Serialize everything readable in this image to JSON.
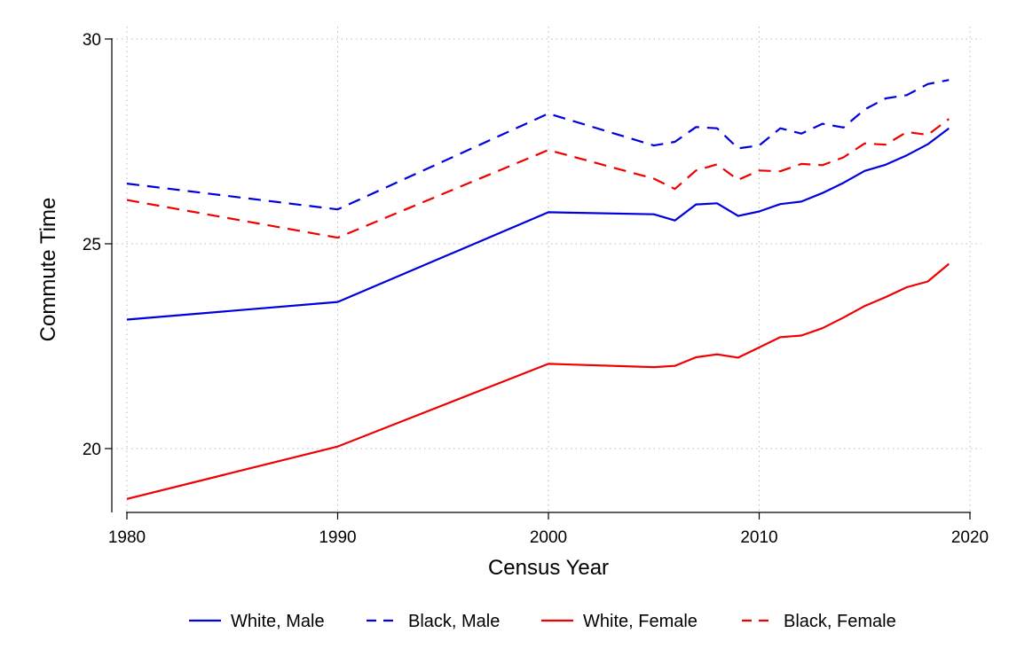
{
  "chart_data": {
    "type": "line",
    "title": "",
    "xlabel": "Census Year",
    "ylabel": "Commute Time",
    "xlim": [
      1980,
      2020
    ],
    "ylim": [
      18.75,
      30.05
    ],
    "x_ticks": [
      1980,
      1990,
      2000,
      2010,
      2020
    ],
    "y_ticks": [
      20,
      25,
      30
    ],
    "grid": "dotted",
    "legend_position": "bottom",
    "series": [
      {
        "name": "White, Male",
        "color": "#0000dd",
        "dash": "solid",
        "x": [
          1980,
          1990,
          2000,
          2005,
          2006,
          2007,
          2008,
          2009,
          2010,
          2011,
          2012,
          2013,
          2014,
          2015,
          2016,
          2017,
          2018,
          2019
        ],
        "y": [
          23.15,
          23.58,
          25.77,
          25.72,
          25.57,
          25.96,
          25.99,
          25.68,
          25.79,
          25.97,
          26.03,
          26.24,
          26.49,
          26.78,
          26.93,
          27.16,
          27.43,
          27.82
        ]
      },
      {
        "name": "Black, Male",
        "color": "#0000dd",
        "dash": "dashed",
        "x": [
          1980,
          1990,
          2000,
          2005,
          2006,
          2007,
          2008,
          2009,
          2010,
          2011,
          2012,
          2013,
          2014,
          2015,
          2016,
          2017,
          2018,
          2019
        ],
        "y": [
          26.47,
          25.84,
          28.18,
          27.4,
          27.49,
          27.85,
          27.82,
          27.33,
          27.4,
          27.82,
          27.69,
          27.93,
          27.84,
          28.28,
          28.55,
          28.63,
          28.9,
          29.0
        ]
      },
      {
        "name": "White, Female",
        "color": "#ee0000",
        "dash": "solid",
        "x": [
          1980,
          1990,
          2000,
          2005,
          2006,
          2007,
          2008,
          2009,
          2010,
          2011,
          2012,
          2013,
          2014,
          2015,
          2016,
          2017,
          2018,
          2019
        ],
        "y": [
          18.77,
          20.05,
          22.07,
          21.99,
          22.02,
          22.23,
          22.3,
          22.22,
          22.47,
          22.72,
          22.76,
          22.94,
          23.2,
          23.48,
          23.7,
          23.94,
          24.08,
          24.51
        ]
      },
      {
        "name": "Black, Female",
        "color": "#ee0000",
        "dash": "dashed",
        "x": [
          1980,
          1990,
          2000,
          2005,
          2006,
          2007,
          2008,
          2009,
          2010,
          2011,
          2012,
          2013,
          2014,
          2015,
          2016,
          2017,
          2018,
          2019
        ],
        "y": [
          26.07,
          25.15,
          27.29,
          26.59,
          26.34,
          26.79,
          26.94,
          26.56,
          26.79,
          26.77,
          26.95,
          26.92,
          27.11,
          27.45,
          27.42,
          27.73,
          27.66,
          28.05
        ]
      }
    ]
  }
}
